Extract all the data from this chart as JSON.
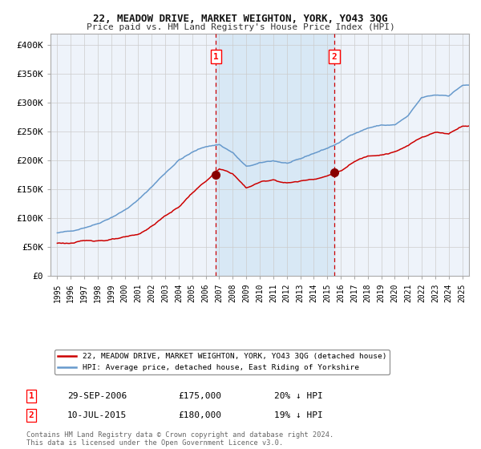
{
  "title": "22, MEADOW DRIVE, MARKET WEIGHTON, YORK, YO43 3QG",
  "subtitle": "Price paid vs. HM Land Registry's House Price Index (HPI)",
  "bg_color": "#ffffff",
  "plot_bg_color": "#eef3fa",
  "highlight_bg_color": "#d8e8f5",
  "grid_color": "#cccccc",
  "hpi_color": "#6699cc",
  "price_color": "#cc0000",
  "marker_color": "#880000",
  "dashed_color": "#cc0000",
  "sale1_x": 2006.75,
  "sale1_y": 175000,
  "sale2_x": 2015.52,
  "sale2_y": 180000,
  "ylim": [
    0,
    420000
  ],
  "xlim": [
    1994.5,
    2025.5
  ],
  "yticks": [
    0,
    50000,
    100000,
    150000,
    200000,
    250000,
    300000,
    350000,
    400000
  ],
  "ytick_labels": [
    "£0",
    "£50K",
    "£100K",
    "£150K",
    "£200K",
    "£250K",
    "£300K",
    "£350K",
    "£400K"
  ],
  "xticks": [
    1995,
    1996,
    1997,
    1998,
    1999,
    2000,
    2001,
    2002,
    2003,
    2004,
    2005,
    2006,
    2007,
    2008,
    2009,
    2010,
    2011,
    2012,
    2013,
    2014,
    2015,
    2016,
    2017,
    2018,
    2019,
    2020,
    2021,
    2022,
    2023,
    2024,
    2025
  ],
  "legend_label_price": "22, MEADOW DRIVE, MARKET WEIGHTON, YORK, YO43 3QG (detached house)",
  "legend_label_hpi": "HPI: Average price, detached house, East Riding of Yorkshire",
  "note1_num": "1",
  "note1_date": "29-SEP-2006",
  "note1_price": "£175,000",
  "note1_hpi": "20% ↓ HPI",
  "note2_num": "2",
  "note2_date": "10-JUL-2015",
  "note2_price": "£180,000",
  "note2_hpi": "19% ↓ HPI",
  "footer": "Contains HM Land Registry data © Crown copyright and database right 2024.\nThis data is licensed under the Open Government Licence v3.0.",
  "hpi_years": [
    1995,
    1996,
    1997,
    1998,
    1999,
    2000,
    2001,
    2002,
    2003,
    2004,
    2005,
    2006,
    2007,
    2008,
    2009,
    2010,
    2011,
    2012,
    2013,
    2014,
    2015,
    2016,
    2017,
    2018,
    2019,
    2020,
    2021,
    2022,
    2023,
    2024,
    2025
  ],
  "hpi_vals": [
    75000,
    77000,
    85000,
    93000,
    105000,
    118000,
    135000,
    158000,
    182000,
    205000,
    218000,
    228000,
    232000,
    218000,
    193000,
    198000,
    202000,
    198000,
    203000,
    213000,
    222000,
    233000,
    248000,
    258000,
    263000,
    263000,
    278000,
    308000,
    312000,
    312000,
    330000
  ],
  "price_years": [
    1995,
    1996,
    1997,
    1998,
    1999,
    2000,
    2001,
    2002,
    2003,
    2004,
    2005,
    2006,
    2007,
    2008,
    2009,
    2010,
    2011,
    2012,
    2013,
    2014,
    2015,
    2016,
    2017,
    2018,
    2019,
    2020,
    2021,
    2022,
    2023,
    2024,
    2025
  ],
  "price_vals": [
    57000,
    57500,
    60000,
    62000,
    64000,
    66000,
    70000,
    85000,
    103000,
    118000,
    143000,
    163000,
    183000,
    175000,
    150000,
    160000,
    165000,
    160000,
    163000,
    168000,
    174000,
    183000,
    198000,
    208000,
    213000,
    218000,
    228000,
    243000,
    252000,
    250000,
    265000
  ]
}
